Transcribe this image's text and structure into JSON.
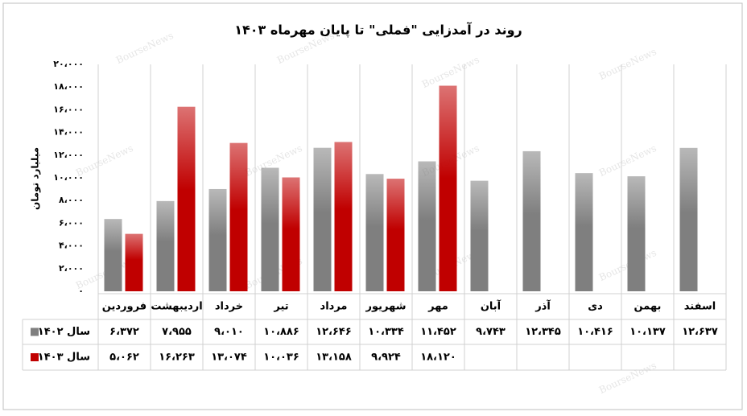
{
  "chart_data": {
    "type": "bar",
    "title": "روند در آمدزایی \"فملی\" تا پایان مهرماه ۱۴۰۳",
    "y_label": "میلیارد تومان",
    "watermark": "BourseNews",
    "categories": [
      "فروردین",
      "اردیبهشت",
      "خرداد",
      "تیر",
      "مرداد",
      "شهریور",
      "مهر",
      "آبان",
      "آذر",
      "دی",
      "بهمن",
      "اسفند"
    ],
    "series": [
      {
        "name": "سال ۱۴۰۲",
        "color": "#7f7f7f",
        "values": [
          6372,
          7955,
          9010,
          10886,
          12646,
          10334,
          11452,
          9743,
          12345,
          10416,
          10137,
          12637
        ],
        "value_labels": [
          "۶،۳۷۲",
          "۷،۹۵۵",
          "۹،۰۱۰",
          "۱۰،۸۸۶",
          "۱۲،۶۴۶",
          "۱۰،۳۳۴",
          "۱۱،۴۵۲",
          "۹،۷۴۳",
          "۱۲،۳۴۵",
          "۱۰،۴۱۶",
          "۱۰،۱۳۷",
          "۱۲،۶۳۷"
        ]
      },
      {
        "name": "سال ۱۴۰۳",
        "color": "#c00000",
        "values": [
          5062,
          16263,
          13074,
          10036,
          13158,
          9924,
          18120,
          null,
          null,
          null,
          null,
          null
        ],
        "value_labels": [
          "۵،۰۶۲",
          "۱۶،۲۶۳",
          "۱۳،۰۷۴",
          "۱۰،۰۳۶",
          "۱۳،۱۵۸",
          "۹،۹۲۴",
          "۱۸،۱۲۰",
          null,
          null,
          null,
          null,
          null
        ]
      }
    ],
    "ylim": [
      0,
      20000
    ],
    "yticks": [
      {
        "value": 0,
        "label": "۰"
      },
      {
        "value": 2000,
        "label": "۲،۰۰۰"
      },
      {
        "value": 4000,
        "label": "۴،۰۰۰"
      },
      {
        "value": 6000,
        "label": "۶،۰۰۰"
      },
      {
        "value": 8000,
        "label": "۸،۰۰۰"
      },
      {
        "value": 10000,
        "label": "۱۰،۰۰۰"
      },
      {
        "value": 12000,
        "label": "۱۲،۰۰۰"
      },
      {
        "value": 14000,
        "label": "۱۴،۰۰۰"
      },
      {
        "value": 16000,
        "label": "۱۶،۰۰۰"
      },
      {
        "value": 18000,
        "label": "۱۸،۰۰۰"
      },
      {
        "value": 20000,
        "label": "۲۰،۰۰۰"
      }
    ],
    "grid": false
  }
}
